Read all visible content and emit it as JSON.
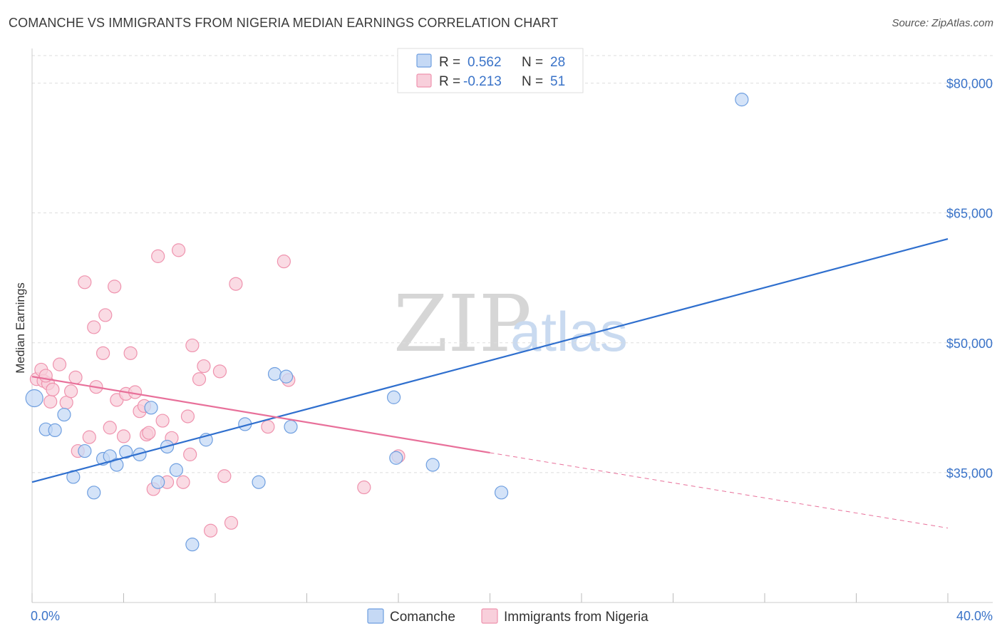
{
  "title": "COMANCHE VS IMMIGRANTS FROM NIGERIA MEDIAN EARNINGS CORRELATION CHART",
  "source": "Source: ZipAtlas.com",
  "watermark": {
    "zip": "ZIP",
    "atlas": "atlas"
  },
  "colors": {
    "comanche": "#6f9fe0",
    "comanche_fill": "#c5d9f5",
    "comanche_line": "#2f6fce",
    "nigeria": "#ef93ae",
    "nigeria_fill": "#f8cfdb",
    "nigeria_line": "#e8709a",
    "grid": "#dddddd",
    "tick_text": "#3a73c8"
  },
  "legend": {
    "rows": [
      {
        "r_label": "R =",
        "r_value": "0.562",
        "n_label": "N =",
        "n_value": "28"
      },
      {
        "r_label": "R =",
        "r_value": "-0.213",
        "n_label": "N =",
        "n_value": "51"
      }
    ]
  },
  "chart_data": {
    "type": "scatter",
    "title": "COMANCHE VS IMMIGRANTS FROM NIGERIA MEDIAN EARNINGS CORRELATION CHART",
    "xlabel": "",
    "ylabel": "Median Earnings",
    "xlim": [
      0,
      40
    ],
    "ylim": [
      20000,
      84000
    ],
    "x_tick_labels": [
      "0.0%",
      "40.0%"
    ],
    "y_ticks": [
      35000,
      50000,
      65000,
      80000
    ],
    "y_tick_labels": [
      "$35,000",
      "$50,000",
      "$65,000",
      "$80,000"
    ],
    "series": [
      {
        "name": "Comanche",
        "r": 0.562,
        "n": 28,
        "trend": {
          "x": [
            0,
            40
          ],
          "y": [
            33900,
            62000
          ]
        },
        "points": [
          [
            0.1,
            43600
          ],
          [
            0.6,
            40000
          ],
          [
            1.0,
            39900
          ],
          [
            1.4,
            41700
          ],
          [
            1.8,
            34500
          ],
          [
            2.3,
            37500
          ],
          [
            2.7,
            32700
          ],
          [
            3.1,
            36600
          ],
          [
            3.4,
            36900
          ],
          [
            3.7,
            35900
          ],
          [
            4.1,
            37400
          ],
          [
            4.7,
            37100
          ],
          [
            5.2,
            42500
          ],
          [
            5.5,
            33900
          ],
          [
            5.9,
            38000
          ],
          [
            6.3,
            35300
          ],
          [
            7.0,
            26700
          ],
          [
            7.6,
            38800
          ],
          [
            9.3,
            40600
          ],
          [
            9.9,
            33900
          ],
          [
            10.6,
            46400
          ],
          [
            11.1,
            46100
          ],
          [
            11.3,
            40300
          ],
          [
            15.8,
            43700
          ],
          [
            15.9,
            36700
          ],
          [
            17.5,
            35900
          ],
          [
            20.5,
            32700
          ],
          [
            31.0,
            78100
          ]
        ]
      },
      {
        "name": "Immigrants from Nigeria",
        "r": -0.213,
        "n": 51,
        "trend": {
          "x": [
            0,
            20
          ],
          "y": [
            46100,
            37300
          ]
        },
        "trend_extended": {
          "x": [
            20,
            40
          ],
          "y": [
            37300,
            28600
          ]
        },
        "points": [
          [
            0.2,
            45800
          ],
          [
            0.4,
            46900
          ],
          [
            0.5,
            45600
          ],
          [
            0.7,
            45300
          ],
          [
            0.8,
            43200
          ],
          [
            0.9,
            44600
          ],
          [
            1.2,
            47500
          ],
          [
            1.5,
            43100
          ],
          [
            1.7,
            44400
          ],
          [
            1.9,
            46000
          ],
          [
            2.0,
            37500
          ],
          [
            2.3,
            57000
          ],
          [
            2.5,
            39100
          ],
          [
            2.7,
            51800
          ],
          [
            2.8,
            44900
          ],
          [
            3.1,
            48800
          ],
          [
            3.2,
            53200
          ],
          [
            3.4,
            40200
          ],
          [
            3.6,
            56500
          ],
          [
            3.7,
            43400
          ],
          [
            4.0,
            39200
          ],
          [
            4.1,
            44100
          ],
          [
            4.3,
            48800
          ],
          [
            4.5,
            44300
          ],
          [
            4.7,
            42100
          ],
          [
            4.9,
            42700
          ],
          [
            5.0,
            39400
          ],
          [
            5.1,
            39600
          ],
          [
            5.3,
            33100
          ],
          [
            5.5,
            60000
          ],
          [
            5.7,
            41000
          ],
          [
            5.9,
            33900
          ],
          [
            6.1,
            39000
          ],
          [
            6.4,
            60700
          ],
          [
            6.6,
            33900
          ],
          [
            6.8,
            41500
          ],
          [
            6.9,
            37100
          ],
          [
            7.0,
            49700
          ],
          [
            7.3,
            45800
          ],
          [
            7.5,
            47300
          ],
          [
            7.8,
            28300
          ],
          [
            8.2,
            46700
          ],
          [
            8.4,
            34600
          ],
          [
            8.7,
            29200
          ],
          [
            8.9,
            56800
          ],
          [
            10.3,
            40300
          ],
          [
            11.0,
            59400
          ],
          [
            11.2,
            45700
          ],
          [
            14.5,
            33300
          ],
          [
            16.0,
            36900
          ],
          [
            0.6,
            46200
          ]
        ]
      }
    ],
    "bottom_legend": [
      "Comanche",
      "Immigrants from Nigeria"
    ]
  }
}
